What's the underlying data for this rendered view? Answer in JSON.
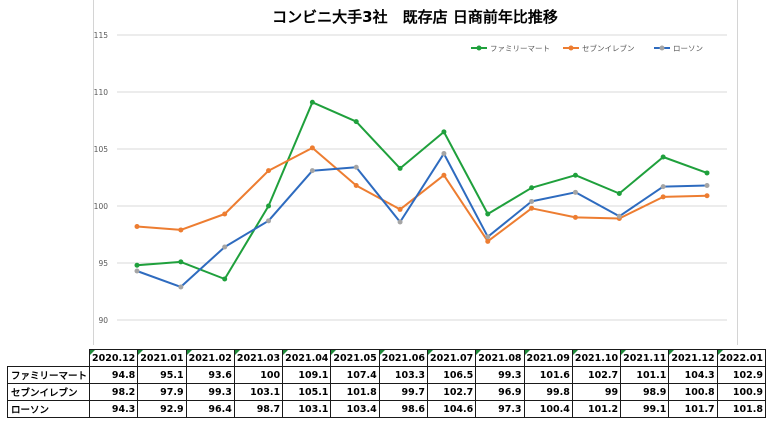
{
  "chart_data": {
    "type": "line",
    "title": "コンビニ大手3社　既存店 日商前年比推移",
    "categories": [
      "2020.12",
      "2021.01",
      "2021.02",
      "2021.03",
      "2021.04",
      "2021.05",
      "2021.06",
      "2021.07",
      "2021.08",
      "2021.09",
      "2021.10",
      "2021.11",
      "2021.12",
      "2022.01"
    ],
    "series": [
      {
        "name": "ファミリーマート",
        "color": "#1fa03c",
        "values": [
          94.8,
          95.1,
          93.6,
          100,
          109.1,
          107.4,
          103.3,
          106.5,
          99.3,
          101.6,
          102.7,
          101.1,
          104.3,
          102.9
        ]
      },
      {
        "name": "セブンイレブン",
        "color": "#ed7d31",
        "values": [
          98.2,
          97.9,
          99.3,
          103.1,
          105.1,
          101.8,
          99.7,
          102.7,
          96.9,
          99.8,
          99,
          98.9,
          100.8,
          100.9
        ]
      },
      {
        "name": "ローソン",
        "color": "#2e6bbf",
        "marker_color": "#a5a5a5",
        "values": [
          94.3,
          92.9,
          96.4,
          98.7,
          103.1,
          103.4,
          98.6,
          104.6,
          97.3,
          100.4,
          101.2,
          99.1,
          101.7,
          101.8
        ]
      }
    ],
    "ylim": [
      90,
      115
    ],
    "yticks": [
      "90",
      "95",
      "100",
      "105",
      "110",
      "115"
    ],
    "legend_position": "top-right",
    "grid": true
  },
  "table": {
    "headers": [
      "2020.12",
      "2021.01",
      "2021.02",
      "2021.03",
      "2021.04",
      "2021.05",
      "2021.06",
      "2021.07",
      "2021.08",
      "2021.09",
      "2021.10",
      "2021.11",
      "2021.12",
      "2022.01"
    ],
    "rows": [
      {
        "label": "ファミリーマート",
        "values": [
          "94.8",
          "95.1",
          "93.6",
          "100",
          "109.1",
          "107.4",
          "103.3",
          "106.5",
          "99.3",
          "101.6",
          "102.7",
          "101.1",
          "104.3",
          "102.9"
        ]
      },
      {
        "label": "セブンイレブン",
        "values": [
          "98.2",
          "97.9",
          "99.3",
          "103.1",
          "105.1",
          "101.8",
          "99.7",
          "102.7",
          "96.9",
          "99.8",
          "99",
          "98.9",
          "100.8",
          "100.9"
        ]
      },
      {
        "label": "ローソン",
        "values": [
          "94.3",
          "92.9",
          "96.4",
          "98.7",
          "103.1",
          "103.4",
          "98.6",
          "104.6",
          "97.3",
          "100.4",
          "101.2",
          "99.1",
          "101.7",
          "101.8"
        ]
      }
    ]
  }
}
